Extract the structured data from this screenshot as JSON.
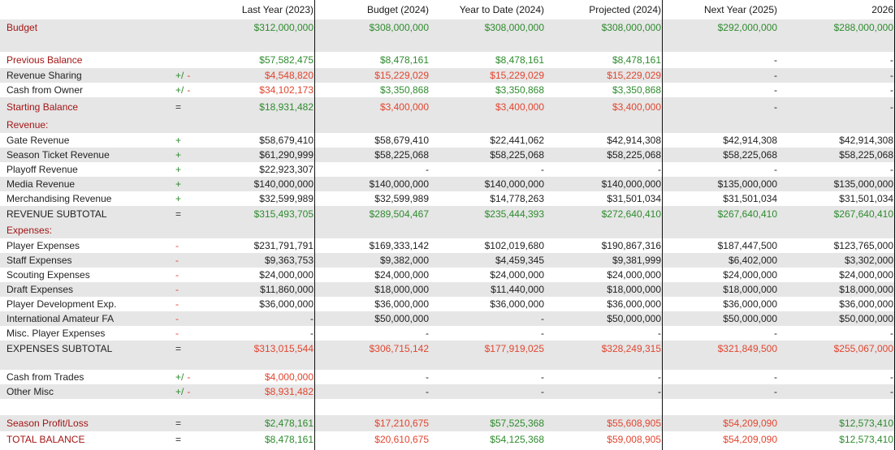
{
  "colors": {
    "red": "#e2452f",
    "green": "#2e8b2e",
    "section_red": "#a31515",
    "shade": "#e6e6e6"
  },
  "headers": [
    "Last Year (2023)",
    "Budget (2024)",
    "Year to Date (2024)",
    "Projected (2024)",
    "Next Year (2025)",
    "2026"
  ],
  "rows": [
    {
      "label": "Budget",
      "label_color": "dkred",
      "ops": [],
      "values": [
        [
          "$312,000,000",
          "green"
        ],
        [
          "$308,000,000",
          "green"
        ],
        [
          "$308,000,000",
          "green"
        ],
        [
          "$308,000,000",
          "green"
        ],
        [
          "$292,000,000",
          "green"
        ],
        [
          "$288,000,000",
          "green"
        ]
      ]
    },
    {
      "label": "",
      "ops": [],
      "values": []
    },
    {
      "label": "Previous Balance",
      "label_color": "dkred",
      "ops": [],
      "values": [
        [
          "$57,582,475",
          "green"
        ],
        [
          "$8,478,161",
          "green"
        ],
        [
          "$8,478,161",
          "green"
        ],
        [
          "$8,478,161",
          "green"
        ],
        [
          "-",
          "dark"
        ],
        [
          "-",
          "dark"
        ]
      ]
    },
    {
      "label": "Revenue Sharing",
      "label_color": "dark",
      "ops": [
        [
          "+/",
          "green"
        ],
        [
          "-",
          "red"
        ]
      ],
      "values": [
        [
          "$4,548,820",
          "red"
        ],
        [
          "$15,229,029",
          "red"
        ],
        [
          "$15,229,029",
          "red"
        ],
        [
          "$15,229,029",
          "red"
        ],
        [
          "-",
          "dark"
        ],
        [
          "-",
          "dark"
        ]
      ]
    },
    {
      "label": "Cash from Owner",
      "label_color": "dark",
      "ops": [
        [
          "+/",
          "green"
        ],
        [
          "-",
          "red"
        ]
      ],
      "values": [
        [
          "$34,102,173",
          "red"
        ],
        [
          "$3,350,868",
          "green"
        ],
        [
          "$3,350,868",
          "green"
        ],
        [
          "$3,350,868",
          "green"
        ],
        [
          "-",
          "dark"
        ],
        [
          "-",
          "dark"
        ]
      ]
    },
    {
      "label": "Starting Balance",
      "label_color": "dkred",
      "ops": [
        [
          "=",
          "dark"
        ]
      ],
      "values": [
        [
          "$18,931,482",
          "green"
        ],
        [
          "$3,400,000",
          "red"
        ],
        [
          "$3,400,000",
          "red"
        ],
        [
          "$3,400,000",
          "red"
        ],
        [
          "-",
          "dark"
        ],
        [
          "-",
          "dark"
        ]
      ]
    },
    {
      "label": "Revenue:",
      "label_color": "dkred",
      "ops": [],
      "values": []
    },
    {
      "label": "Gate Revenue",
      "label_color": "dark",
      "ops": [
        [
          "+",
          "green"
        ]
      ],
      "values": [
        [
          "$58,679,410",
          "dark"
        ],
        [
          "$58,679,410",
          "dark"
        ],
        [
          "$22,441,062",
          "dark"
        ],
        [
          "$42,914,308",
          "dark"
        ],
        [
          "$42,914,308",
          "dark"
        ],
        [
          "$42,914,308",
          "dark"
        ]
      ]
    },
    {
      "label": "Season Ticket Revenue",
      "label_color": "dark",
      "ops": [
        [
          "+",
          "green"
        ]
      ],
      "values": [
        [
          "$61,290,999",
          "dark"
        ],
        [
          "$58,225,068",
          "dark"
        ],
        [
          "$58,225,068",
          "dark"
        ],
        [
          "$58,225,068",
          "dark"
        ],
        [
          "$58,225,068",
          "dark"
        ],
        [
          "$58,225,068",
          "dark"
        ]
      ]
    },
    {
      "label": "Playoff Revenue",
      "label_color": "dark",
      "ops": [
        [
          "+",
          "green"
        ]
      ],
      "values": [
        [
          "$22,923,307",
          "dark"
        ],
        [
          "-",
          "dark"
        ],
        [
          "-",
          "dark"
        ],
        [
          "-",
          "dark"
        ],
        [
          "-",
          "dark"
        ],
        [
          "-",
          "dark"
        ]
      ]
    },
    {
      "label": "Media Revenue",
      "label_color": "dark",
      "ops": [
        [
          "+",
          "green"
        ]
      ],
      "values": [
        [
          "$140,000,000",
          "dark"
        ],
        [
          "$140,000,000",
          "dark"
        ],
        [
          "$140,000,000",
          "dark"
        ],
        [
          "$140,000,000",
          "dark"
        ],
        [
          "$135,000,000",
          "dark"
        ],
        [
          "$135,000,000",
          "dark"
        ]
      ]
    },
    {
      "label": "Merchandising Revenue",
      "label_color": "dark",
      "ops": [
        [
          "+",
          "green"
        ]
      ],
      "values": [
        [
          "$32,599,989",
          "dark"
        ],
        [
          "$32,599,989",
          "dark"
        ],
        [
          "$14,778,263",
          "dark"
        ],
        [
          "$31,501,034",
          "dark"
        ],
        [
          "$31,501,034",
          "dark"
        ],
        [
          "$31,501,034",
          "dark"
        ]
      ]
    },
    {
      "label": "REVENUE SUBTOTAL",
      "label_color": "dark",
      "ops": [
        [
          "=",
          "dark"
        ]
      ],
      "values": [
        [
          "$315,493,705",
          "green"
        ],
        [
          "$289,504,467",
          "green"
        ],
        [
          "$235,444,393",
          "green"
        ],
        [
          "$272,640,410",
          "green"
        ],
        [
          "$267,640,410",
          "green"
        ],
        [
          "$267,640,410",
          "green"
        ]
      ]
    },
    {
      "label": "Expenses:",
      "label_color": "dkred",
      "ops": [],
      "values": []
    },
    {
      "label": "Player Expenses",
      "label_color": "dark",
      "ops": [
        [
          "-",
          "red"
        ]
      ],
      "values": [
        [
          "$231,791,791",
          "dark"
        ],
        [
          "$169,333,142",
          "dark"
        ],
        [
          "$102,019,680",
          "dark"
        ],
        [
          "$190,867,316",
          "dark"
        ],
        [
          "$187,447,500",
          "dark"
        ],
        [
          "$123,765,000",
          "dark"
        ]
      ]
    },
    {
      "label": "Staff Expenses",
      "label_color": "dark",
      "ops": [
        [
          "-",
          "red"
        ]
      ],
      "values": [
        [
          "$9,363,753",
          "dark"
        ],
        [
          "$9,382,000",
          "dark"
        ],
        [
          "$4,459,345",
          "dark"
        ],
        [
          "$9,381,999",
          "dark"
        ],
        [
          "$6,402,000",
          "dark"
        ],
        [
          "$3,302,000",
          "dark"
        ]
      ]
    },
    {
      "label": "Scouting Expenses",
      "label_color": "dark",
      "ops": [
        [
          "-",
          "red"
        ]
      ],
      "values": [
        [
          "$24,000,000",
          "dark"
        ],
        [
          "$24,000,000",
          "dark"
        ],
        [
          "$24,000,000",
          "dark"
        ],
        [
          "$24,000,000",
          "dark"
        ],
        [
          "$24,000,000",
          "dark"
        ],
        [
          "$24,000,000",
          "dark"
        ]
      ]
    },
    {
      "label": "Draft Expenses",
      "label_color": "dark",
      "ops": [
        [
          "-",
          "red"
        ]
      ],
      "values": [
        [
          "$11,860,000",
          "dark"
        ],
        [
          "$18,000,000",
          "dark"
        ],
        [
          "$11,440,000",
          "dark"
        ],
        [
          "$18,000,000",
          "dark"
        ],
        [
          "$18,000,000",
          "dark"
        ],
        [
          "$18,000,000",
          "dark"
        ]
      ]
    },
    {
      "label": "Player Development Exp.",
      "label_color": "dark",
      "ops": [
        [
          "-",
          "red"
        ]
      ],
      "values": [
        [
          "$36,000,000",
          "dark"
        ],
        [
          "$36,000,000",
          "dark"
        ],
        [
          "$36,000,000",
          "dark"
        ],
        [
          "$36,000,000",
          "dark"
        ],
        [
          "$36,000,000",
          "dark"
        ],
        [
          "$36,000,000",
          "dark"
        ]
      ]
    },
    {
      "label": "International Amateur FA",
      "label_color": "dark",
      "ops": [
        [
          "-",
          "red"
        ]
      ],
      "values": [
        [
          "-",
          "dark"
        ],
        [
          "$50,000,000",
          "dark"
        ],
        [
          "-",
          "dark"
        ],
        [
          "$50,000,000",
          "dark"
        ],
        [
          "$50,000,000",
          "dark"
        ],
        [
          "$50,000,000",
          "dark"
        ]
      ]
    },
    {
      "label": "Misc. Player Expenses",
      "label_color": "dark",
      "ops": [
        [
          "-",
          "red"
        ]
      ],
      "values": [
        [
          "-",
          "dark"
        ],
        [
          "-",
          "dark"
        ],
        [
          "-",
          "dark"
        ],
        [
          "-",
          "dark"
        ],
        [
          "-",
          "dark"
        ],
        [
          "-",
          "dark"
        ]
      ]
    },
    {
      "label": "EXPENSES SUBTOTAL",
      "label_color": "dark",
      "ops": [
        [
          "=",
          "dark"
        ]
      ],
      "values": [
        [
          "$313,015,544",
          "red"
        ],
        [
          "$306,715,142",
          "red"
        ],
        [
          "$177,919,025",
          "red"
        ],
        [
          "$328,249,315",
          "red"
        ],
        [
          "$321,849,500",
          "red"
        ],
        [
          "$255,067,000",
          "red"
        ]
      ]
    },
    {
      "label": "",
      "ops": [],
      "values": []
    },
    {
      "label": "Cash from Trades",
      "label_color": "dark",
      "ops": [
        [
          "+/",
          "green"
        ],
        [
          "-",
          "red"
        ]
      ],
      "values": [
        [
          "$4,000,000",
          "red"
        ],
        [
          "-",
          "dark"
        ],
        [
          "-",
          "dark"
        ],
        [
          "-",
          "dark"
        ],
        [
          "-",
          "dark"
        ],
        [
          "-",
          "dark"
        ]
      ]
    },
    {
      "label": "Other Misc",
      "label_color": "dark",
      "ops": [
        [
          "+/",
          "green"
        ],
        [
          "-",
          "red"
        ]
      ],
      "values": [
        [
          "$8,931,482",
          "red"
        ],
        [
          "-",
          "dark"
        ],
        [
          "-",
          "dark"
        ],
        [
          "-",
          "dark"
        ],
        [
          "-",
          "dark"
        ],
        [
          "-",
          "dark"
        ]
      ]
    },
    {
      "label": "",
      "ops": [],
      "values": []
    },
    {
      "label": "Season Profit/Loss",
      "label_color": "dkred",
      "ops": [
        [
          "=",
          "dark"
        ]
      ],
      "values": [
        [
          "$2,478,161",
          "green"
        ],
        [
          "$17,210,675",
          "red"
        ],
        [
          "$57,525,368",
          "green"
        ],
        [
          "$55,608,905",
          "red"
        ],
        [
          "$54,209,090",
          "red"
        ],
        [
          "$12,573,410",
          "green"
        ]
      ]
    },
    {
      "label": "TOTAL BALANCE",
      "label_color": "dkred",
      "ops": [
        [
          "=",
          "dark"
        ]
      ],
      "values": [
        [
          "$8,478,161",
          "green"
        ],
        [
          "$20,610,675",
          "red"
        ],
        [
          "$54,125,368",
          "green"
        ],
        [
          "$59,008,905",
          "red"
        ],
        [
          "$54,209,090",
          "red"
        ],
        [
          "$12,573,410",
          "green"
        ]
      ]
    }
  ]
}
